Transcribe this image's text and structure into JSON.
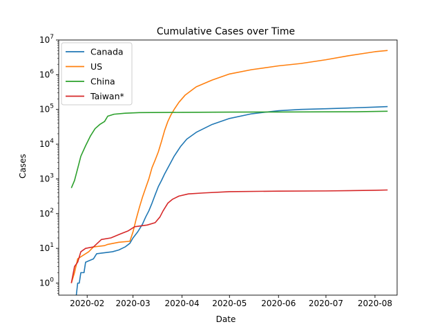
{
  "chart_data": {
    "type": "line",
    "title": "Cumulative Cases over Time",
    "xlabel": "Date",
    "ylabel": "Cases",
    "yscale": "log",
    "xlim": [
      "2020-01-14",
      "2020-08-15"
    ],
    "ylim": [
      0.45,
      10000000
    ],
    "x_ticks": [
      "2020-02",
      "2020-03",
      "2020-04",
      "2020-05",
      "2020-06",
      "2020-07",
      "2020-08"
    ],
    "y_ticks": [
      {
        "value": 1,
        "base": "10",
        "exp": "0"
      },
      {
        "value": 10,
        "base": "10",
        "exp": "1"
      },
      {
        "value": 100,
        "base": "10",
        "exp": "2"
      },
      {
        "value": 1000,
        "base": "10",
        "exp": "3"
      },
      {
        "value": 10000,
        "base": "10",
        "exp": "4"
      },
      {
        "value": 100000,
        "base": "10",
        "exp": "5"
      },
      {
        "value": 1000000,
        "base": "10",
        "exp": "6"
      },
      {
        "value": 10000000,
        "base": "10",
        "exp": "7"
      }
    ],
    "grid": false,
    "legend_position": "top-left",
    "series": [
      {
        "name": "Canada",
        "color": "#1f77b4",
        "points": [
          [
            "2020-01-25",
            0.4
          ],
          [
            "2020-01-26",
            1
          ],
          [
            "2020-01-27",
            1
          ],
          [
            "2020-01-28",
            2
          ],
          [
            "2020-01-30",
            2
          ],
          [
            "2020-01-31",
            4
          ],
          [
            "2020-02-05",
            5
          ],
          [
            "2020-02-07",
            7
          ],
          [
            "2020-02-17",
            8
          ],
          [
            "2020-02-21",
            9
          ],
          [
            "2020-02-25",
            11
          ],
          [
            "2020-02-28",
            14
          ],
          [
            "2020-03-01",
            20
          ],
          [
            "2020-03-04",
            30
          ],
          [
            "2020-03-07",
            50
          ],
          [
            "2020-03-09",
            80
          ],
          [
            "2020-03-11",
            120
          ],
          [
            "2020-03-13",
            200
          ],
          [
            "2020-03-15",
            350
          ],
          [
            "2020-03-17",
            600
          ],
          [
            "2020-03-19",
            900
          ],
          [
            "2020-03-21",
            1400
          ],
          [
            "2020-03-24",
            2500
          ],
          [
            "2020-03-27",
            4500
          ],
          [
            "2020-03-31",
            8500
          ],
          [
            "2020-04-04",
            14000
          ],
          [
            "2020-04-10",
            22000
          ],
          [
            "2020-04-20",
            37000
          ],
          [
            "2020-05-01",
            55000
          ],
          [
            "2020-05-15",
            75000
          ],
          [
            "2020-06-01",
            92000
          ],
          [
            "2020-06-15",
            100000
          ],
          [
            "2020-07-01",
            105000
          ],
          [
            "2020-07-15",
            110000
          ],
          [
            "2020-08-01",
            117000
          ],
          [
            "2020-08-09",
            121000
          ]
        ]
      },
      {
        "name": "US",
        "color": "#ff7f0e",
        "points": [
          [
            "2020-01-22",
            1
          ],
          [
            "2020-01-24",
            2
          ],
          [
            "2020-01-26",
            5
          ],
          [
            "2020-01-31",
            7
          ],
          [
            "2020-02-02",
            8
          ],
          [
            "2020-02-05",
            11
          ],
          [
            "2020-02-12",
            12
          ],
          [
            "2020-02-14",
            13
          ],
          [
            "2020-02-21",
            15
          ],
          [
            "2020-02-28",
            16
          ],
          [
            "2020-03-01",
            30
          ],
          [
            "2020-03-03",
            70
          ],
          [
            "2020-03-05",
            150
          ],
          [
            "2020-03-07",
            300
          ],
          [
            "2020-03-09",
            550
          ],
          [
            "2020-03-11",
            1000
          ],
          [
            "2020-03-13",
            2100
          ],
          [
            "2020-03-15",
            3500
          ],
          [
            "2020-03-17",
            6000
          ],
          [
            "2020-03-19",
            12000
          ],
          [
            "2020-03-21",
            25000
          ],
          [
            "2020-03-23",
            45000
          ],
          [
            "2020-03-25",
            70000
          ],
          [
            "2020-03-27",
            100000
          ],
          [
            "2020-03-30",
            160000
          ],
          [
            "2020-04-03",
            260000
          ],
          [
            "2020-04-10",
            450000
          ],
          [
            "2020-04-20",
            700000
          ],
          [
            "2020-05-01",
            1050000
          ],
          [
            "2020-05-15",
            1400000
          ],
          [
            "2020-06-01",
            1800000
          ],
          [
            "2020-06-15",
            2100000
          ],
          [
            "2020-07-01",
            2700000
          ],
          [
            "2020-07-15",
            3500000
          ],
          [
            "2020-08-01",
            4600000
          ],
          [
            "2020-08-09",
            5000000
          ]
        ]
      },
      {
        "name": "China",
        "color": "#2ca02c",
        "points": [
          [
            "2020-01-22",
            550
          ],
          [
            "2020-01-24",
            900
          ],
          [
            "2020-01-26",
            2000
          ],
          [
            "2020-01-28",
            4500
          ],
          [
            "2020-01-31",
            9000
          ],
          [
            "2020-02-03",
            17000
          ],
          [
            "2020-02-06",
            28000
          ],
          [
            "2020-02-09",
            37000
          ],
          [
            "2020-02-12",
            45000
          ],
          [
            "2020-02-14",
            64000
          ],
          [
            "2020-02-18",
            73000
          ],
          [
            "2020-02-25",
            78000
          ],
          [
            "2020-03-05",
            81000
          ],
          [
            "2020-04-01",
            82500
          ],
          [
            "2020-05-01",
            84000
          ],
          [
            "2020-06-01",
            84500
          ],
          [
            "2020-07-01",
            85500
          ],
          [
            "2020-07-20",
            86000
          ],
          [
            "2020-08-09",
            89000
          ]
        ]
      },
      {
        "name": "Taiwan*",
        "color": "#d62728",
        "points": [
          [
            "2020-01-22",
            1
          ],
          [
            "2020-01-24",
            3
          ],
          [
            "2020-01-26",
            4
          ],
          [
            "2020-01-28",
            8
          ],
          [
            "2020-01-31",
            10
          ],
          [
            "2020-02-05",
            11
          ],
          [
            "2020-02-10",
            18
          ],
          [
            "2020-02-16",
            20
          ],
          [
            "2020-02-22",
            26
          ],
          [
            "2020-02-27",
            32
          ],
          [
            "2020-03-02",
            42
          ],
          [
            "2020-03-10",
            47
          ],
          [
            "2020-03-15",
            55
          ],
          [
            "2020-03-18",
            80
          ],
          [
            "2020-03-20",
            120
          ],
          [
            "2020-03-23",
            200
          ],
          [
            "2020-03-26",
            260
          ],
          [
            "2020-03-30",
            320
          ],
          [
            "2020-04-05",
            370
          ],
          [
            "2020-04-15",
            395
          ],
          [
            "2020-05-01",
            430
          ],
          [
            "2020-06-01",
            445
          ],
          [
            "2020-07-01",
            451
          ],
          [
            "2020-08-01",
            470
          ],
          [
            "2020-08-09",
            480
          ]
        ]
      }
    ]
  }
}
